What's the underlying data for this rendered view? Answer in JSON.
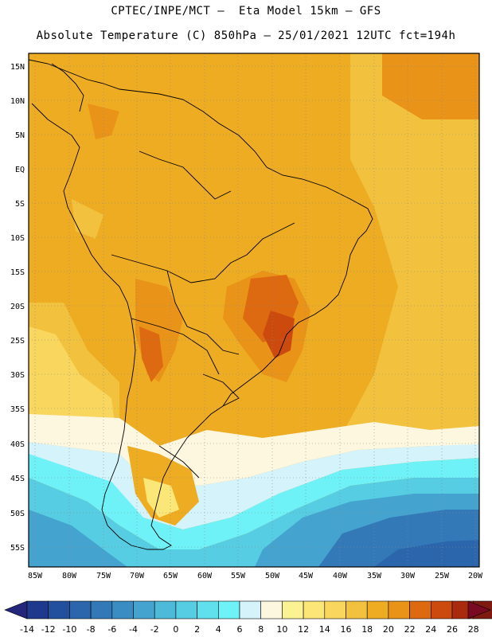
{
  "title_line1": "CPTEC/INPE/MCT –  Eta Model 15km – GFS",
  "title_line2": "Absolute Temperature (C) 850hPa – 25/01/2021 12UTC fct=194h",
  "lat_labels": [
    "15N",
    "10N",
    "5N",
    "EQ",
    "5S",
    "10S",
    "15S",
    "20S",
    "25S",
    "30S",
    "35S",
    "40S",
    "45S",
    "50S",
    "55S"
  ],
  "lon_labels": [
    "85W",
    "80W",
    "75W",
    "70W",
    "65W",
    "60W",
    "55W",
    "50W",
    "45W",
    "40W",
    "35W",
    "30W",
    "25W",
    "20W"
  ],
  "colorbar": {
    "labels": [
      "-14",
      "-12",
      "-10",
      "-8",
      "-6",
      "-4",
      "-2",
      "0",
      "2",
      "4",
      "6",
      "8",
      "10",
      "12",
      "14",
      "16",
      "18",
      "20",
      "22",
      "24",
      "26",
      "28"
    ],
    "colors": [
      "#1e3a8c",
      "#23509e",
      "#2b66ad",
      "#3379b8",
      "#3a8dc3",
      "#44a3cf",
      "#4dbad9",
      "#56cde2",
      "#5fe0ec",
      "#6ef2f7",
      "#d4f3fb",
      "#fdf7e0",
      "#fbf294",
      "#fbe678",
      "#f9d65e",
      "#f2c23f",
      "#eeac22",
      "#e99319",
      "#dd6a10",
      "#cc4a0d",
      "#aa2a0e",
      "#7e1a10"
    ],
    "low_color": "#23267a",
    "high_color": "#7a0a22"
  }
}
